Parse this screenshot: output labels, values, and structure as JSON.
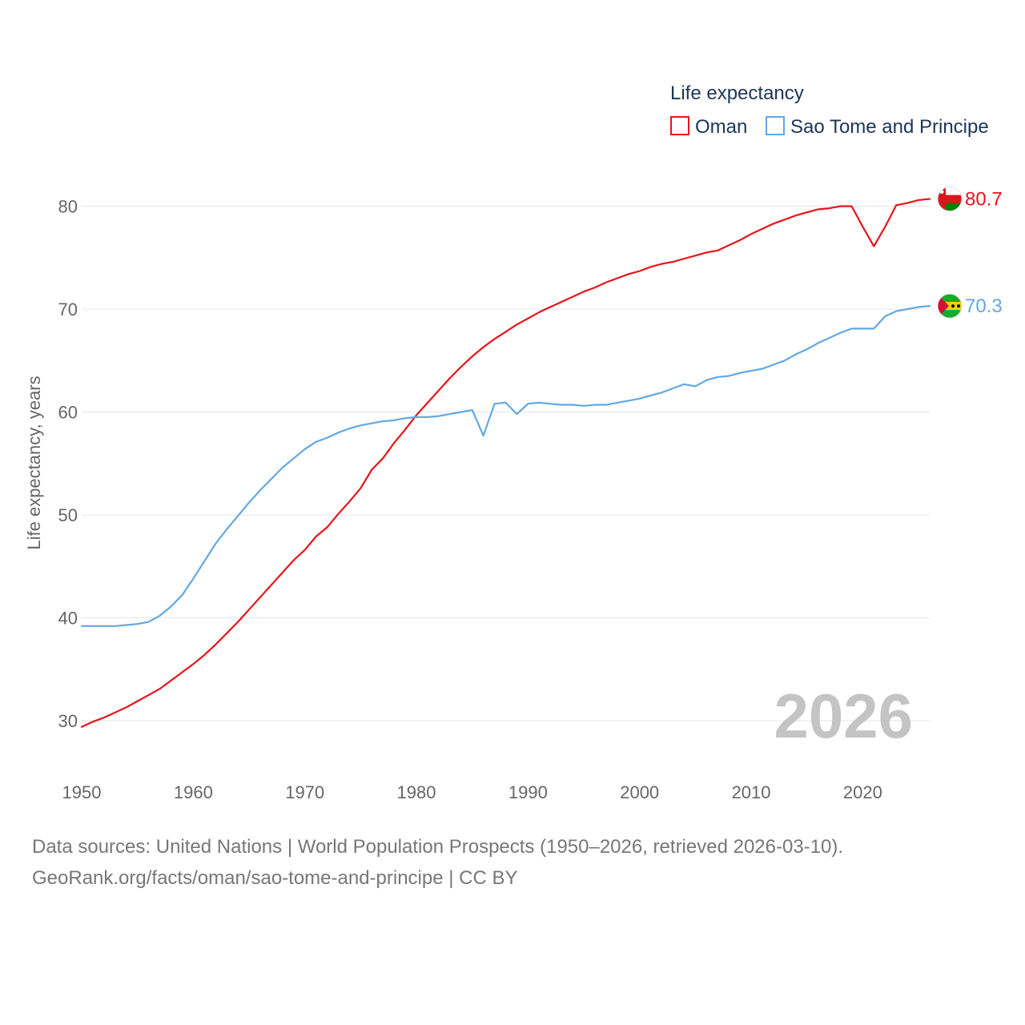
{
  "chart_data": {
    "type": "line",
    "legend_title": "Life expectancy",
    "ylabel": "Life expectancy, years",
    "xlabel": "",
    "xlim": [
      1950,
      2026
    ],
    "ylim": [
      25,
      87
    ],
    "y_ticks": [
      30,
      40,
      50,
      60,
      70,
      80
    ],
    "x_ticks": [
      1950,
      1960,
      1970,
      1980,
      1990,
      2000,
      2010,
      2020
    ],
    "current_year": "2026",
    "legend_position": "top-right",
    "series": [
      {
        "name": "Oman",
        "color": "#e8141a",
        "end_label": "80.7",
        "flag": "oman-flag",
        "x": [
          1950,
          1951,
          1952,
          1953,
          1954,
          1955,
          1956,
          1957,
          1958,
          1959,
          1960,
          1961,
          1962,
          1963,
          1964,
          1965,
          1966,
          1967,
          1968,
          1969,
          1970,
          1971,
          1972,
          1973,
          1974,
          1975,
          1976,
          1977,
          1978,
          1979,
          1980,
          1981,
          1982,
          1983,
          1984,
          1985,
          1986,
          1987,
          1988,
          1989,
          1990,
          1991,
          1992,
          1993,
          1994,
          1995,
          1996,
          1997,
          1998,
          1999,
          2000,
          2001,
          2002,
          2003,
          2004,
          2005,
          2006,
          2007,
          2008,
          2009,
          2010,
          2011,
          2012,
          2013,
          2014,
          2015,
          2016,
          2017,
          2018,
          2019,
          2020,
          2021,
          2022,
          2023,
          2024,
          2025,
          2026
        ],
        "values": [
          29.4,
          29.9,
          30.3,
          30.8,
          31.3,
          31.9,
          32.5,
          33.1,
          33.9,
          34.7,
          35.5,
          36.4,
          37.4,
          38.5,
          39.6,
          40.8,
          42.0,
          43.2,
          44.4,
          45.6,
          46.6,
          47.9,
          48.8,
          50.1,
          51.3,
          52.6,
          54.4,
          55.5,
          57.0,
          58.3,
          59.7,
          60.9,
          62.1,
          63.3,
          64.4,
          65.4,
          66.3,
          67.1,
          67.8,
          68.5,
          69.1,
          69.7,
          70.2,
          70.7,
          71.2,
          71.7,
          72.1,
          72.6,
          73.0,
          73.4,
          73.7,
          74.1,
          74.4,
          74.6,
          74.9,
          75.2,
          75.5,
          75.7,
          76.2,
          76.7,
          77.3,
          77.8,
          78.3,
          78.7,
          79.1,
          79.4,
          79.7,
          79.8,
          80.0,
          80.0,
          78.0,
          76.1,
          78.0,
          80.1,
          80.3,
          80.6,
          80.7
        ]
      },
      {
        "name": "Sao Tome and Principe",
        "color": "#62a8e5",
        "end_label": "70.3",
        "flag": "sao-tome-flag",
        "x": [
          1950,
          1951,
          1952,
          1953,
          1954,
          1955,
          1956,
          1957,
          1958,
          1959,
          1960,
          1961,
          1962,
          1963,
          1964,
          1965,
          1966,
          1967,
          1968,
          1969,
          1970,
          1971,
          1972,
          1973,
          1974,
          1975,
          1976,
          1977,
          1978,
          1979,
          1980,
          1981,
          1982,
          1983,
          1984,
          1985,
          1986,
          1987,
          1988,
          1989,
          1990,
          1991,
          1992,
          1993,
          1994,
          1995,
          1996,
          1997,
          1998,
          1999,
          2000,
          2001,
          2002,
          2003,
          2004,
          2005,
          2006,
          2007,
          2008,
          2009,
          2010,
          2011,
          2012,
          2013,
          2014,
          2015,
          2016,
          2017,
          2018,
          2019,
          2020,
          2021,
          2022,
          2023,
          2024,
          2025,
          2026
        ],
        "values": [
          39.2,
          39.2,
          39.2,
          39.2,
          39.3,
          39.4,
          39.6,
          40.2,
          41.1,
          42.2,
          43.8,
          45.5,
          47.2,
          48.6,
          49.9,
          51.2,
          52.4,
          53.5,
          54.6,
          55.5,
          56.4,
          57.1,
          57.5,
          58.0,
          58.4,
          58.7,
          58.9,
          59.1,
          59.2,
          59.4,
          59.5,
          59.5,
          59.6,
          59.8,
          60.0,
          60.2,
          57.7,
          60.8,
          60.9,
          59.8,
          60.8,
          60.9,
          60.8,
          60.7,
          60.7,
          60.6,
          60.7,
          60.7,
          60.9,
          61.1,
          61.3,
          61.6,
          61.9,
          62.3,
          62.7,
          62.5,
          63.1,
          63.4,
          63.5,
          63.8,
          64.0,
          64.2,
          64.6,
          65.0,
          65.6,
          66.1,
          66.7,
          67.2,
          67.7,
          68.1,
          68.1,
          68.1,
          69.3,
          69.8,
          70.0,
          70.2,
          70.3
        ]
      }
    ]
  },
  "source": {
    "line1": "Data sources: United Nations | World Population Prospects (1950–2026, retrieved 2026-03-10).",
    "line2": "GeoRank.org/facts/oman/sao-tome-and-principe | CC BY"
  }
}
